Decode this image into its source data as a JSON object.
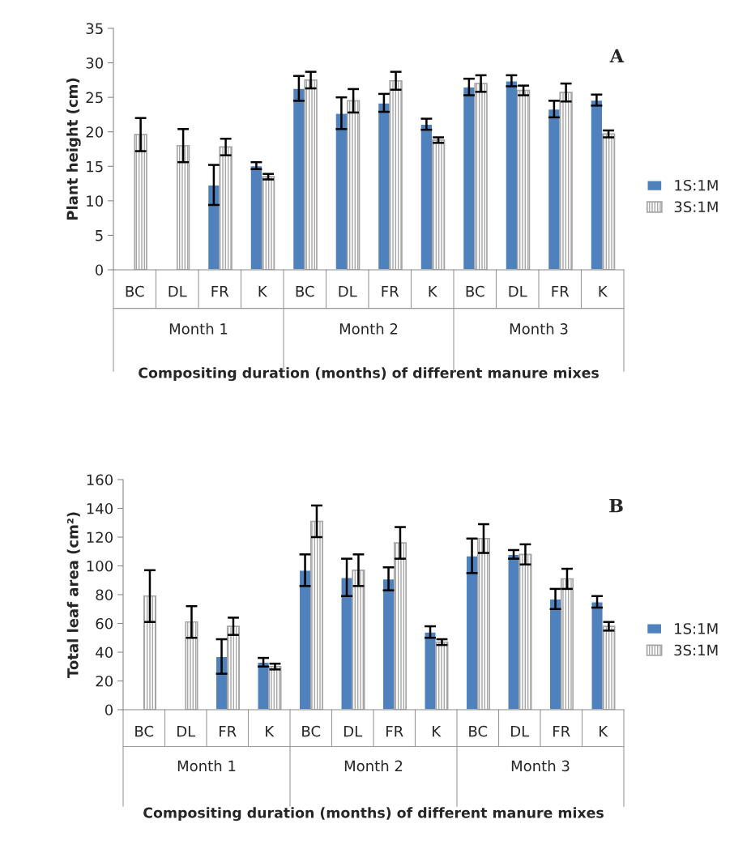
{
  "chart_data": [
    {
      "type": "bar",
      "ylabel": "Plant height (cm)",
      "xlabel": "Compositing duration (months) of different manure mixes",
      "categories": [
        "BC",
        "DL",
        "FR",
        "K",
        "BC",
        "DL",
        "FR",
        "K",
        "BC",
        "DL",
        "FR",
        "K"
      ],
      "annotations": [
        "Month 1",
        "Month 2",
        "Month 3",
        "A"
      ],
      "ylim": [
        0,
        35
      ],
      "yticks": [
        0,
        5,
        10,
        15,
        20,
        25,
        30,
        35
      ],
      "grid": false,
      "legend": "right",
      "series": [
        {
          "name": "1S:1M",
          "color": "#4f81bd",
          "values": [
            null,
            null,
            12.3,
            15.1,
            26.3,
            22.7,
            24.2,
            21.1,
            26.5,
            27.4,
            23.3,
            24.6
          ],
          "errors": [
            null,
            null,
            2.9,
            0.5,
            1.8,
            2.3,
            1.3,
            0.8,
            1.2,
            0.8,
            1.2,
            0.8
          ]
        },
        {
          "name": "3S:1M",
          "color": "#a6a6a6",
          "values": [
            19.6,
            18.0,
            17.8,
            13.5,
            27.5,
            24.5,
            27.4,
            18.8,
            27.0,
            26.0,
            25.7,
            19.7
          ],
          "errors": [
            2.4,
            2.4,
            1.2,
            0.4,
            1.2,
            1.7,
            1.3,
            0.4,
            1.2,
            0.7,
            1.3,
            0.5
          ]
        }
      ]
    },
    {
      "type": "bar",
      "ylabel": "Total leaf area (cm²)",
      "xlabel": "Compositing duration (months) of different manure mixes",
      "categories": [
        "BC",
        "DL",
        "FR",
        "K",
        "BC",
        "DL",
        "FR",
        "K",
        "BC",
        "DL",
        "FR",
        "K"
      ],
      "annotations": [
        "Month 1",
        "Month 2",
        "Month 3",
        "B"
      ],
      "ylim": [
        0,
        160
      ],
      "yticks": [
        0,
        20,
        40,
        60,
        80,
        100,
        120,
        140,
        160
      ],
      "grid": false,
      "legend": "right",
      "series": [
        {
          "name": "1S:1M",
          "color": "#4f81bd",
          "values": [
            null,
            null,
            37,
            33,
            97,
            92,
            91,
            54,
            107,
            108,
            77,
            75
          ],
          "errors": [
            null,
            null,
            12,
            3,
            11,
            13,
            8,
            4,
            12,
            3,
            7,
            4
          ]
        },
        {
          "name": "3S:1M",
          "color": "#a6a6a6",
          "values": [
            79,
            61,
            58,
            30,
            131,
            97,
            116,
            47,
            119,
            108,
            91,
            58
          ],
          "errors": [
            18,
            11,
            6,
            2,
            11,
            11,
            11,
            2,
            10,
            7,
            7,
            3
          ]
        }
      ]
    }
  ]
}
